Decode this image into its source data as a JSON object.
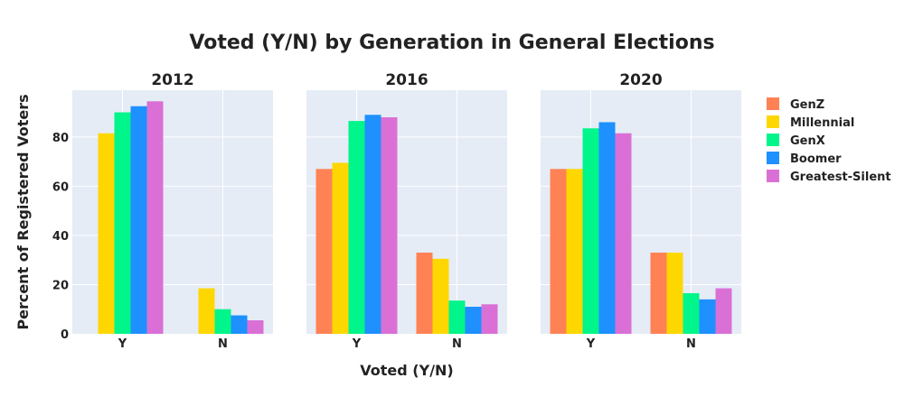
{
  "chart_data": {
    "type": "bar",
    "title": "Voted (Y/N) by Generation in General Elections",
    "xlabel": "Voted (Y/N)",
    "ylabel": "Percent of Registered Voters",
    "ylim": [
      0,
      99
    ],
    "yticks": [
      "0",
      "20",
      "40",
      "60",
      "80"
    ],
    "categories": [
      "Y",
      "N"
    ],
    "legend_position": "right",
    "series_names": [
      "GenZ",
      "Millennial",
      "GenX",
      "Boomer",
      "Greatest-Silent"
    ],
    "colors": [
      "#FF8255",
      "#FFD700",
      "#00F58A",
      "#1E90FF",
      "#DA70D6"
    ],
    "panels": [
      {
        "title": "2012",
        "series": [
          {
            "name": "GenZ",
            "values": [
              null,
              null
            ]
          },
          {
            "name": "Millennial",
            "values": [
              81.5,
              18.5
            ]
          },
          {
            "name": "GenX",
            "values": [
              90,
              10
            ]
          },
          {
            "name": "Boomer",
            "values": [
              92.5,
              7.5
            ]
          },
          {
            "name": "Greatest-Silent",
            "values": [
              94.5,
              5.5
            ]
          }
        ]
      },
      {
        "title": "2016",
        "series": [
          {
            "name": "GenZ",
            "values": [
              67,
              33
            ]
          },
          {
            "name": "Millennial",
            "values": [
              69.5,
              30.5
            ]
          },
          {
            "name": "GenX",
            "values": [
              86.5,
              13.5
            ]
          },
          {
            "name": "Boomer",
            "values": [
              89,
              11
            ]
          },
          {
            "name": "Greatest-Silent",
            "values": [
              88,
              12
            ]
          }
        ]
      },
      {
        "title": "2020",
        "series": [
          {
            "name": "GenZ",
            "values": [
              67,
              33
            ]
          },
          {
            "name": "Millennial",
            "values": [
              67,
              33
            ]
          },
          {
            "name": "GenX",
            "values": [
              83.5,
              16.5
            ]
          },
          {
            "name": "Boomer",
            "values": [
              86,
              14
            ]
          },
          {
            "name": "Greatest-Silent",
            "values": [
              81.5,
              18.5
            ]
          }
        ]
      }
    ]
  }
}
